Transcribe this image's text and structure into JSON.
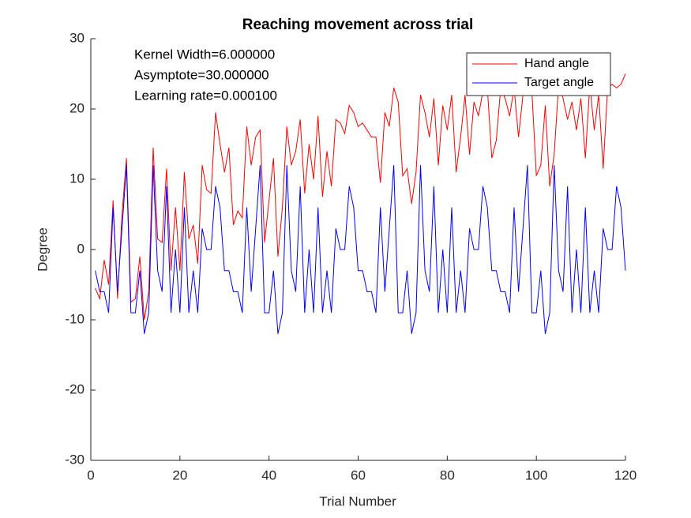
{
  "chart_data": {
    "type": "line",
    "title": "Reaching movement across trial",
    "xlabel": "Trial Number",
    "ylabel": "Degree",
    "annotations": [
      "Kernel Width=6.000000",
      "Asymptote=30.000000",
      "Learning rate=0.000100"
    ],
    "xlim": [
      0,
      120
    ],
    "ylim": [
      -30,
      30
    ],
    "xticks": [
      0,
      20,
      40,
      60,
      80,
      100,
      120
    ],
    "yticks": [
      -30,
      -20,
      -10,
      0,
      10,
      20,
      30
    ],
    "legend": "northeast",
    "x": [
      1,
      2,
      3,
      4,
      5,
      6,
      7,
      8,
      9,
      10,
      11,
      12,
      13,
      14,
      15,
      16,
      17,
      18,
      19,
      20,
      21,
      22,
      23,
      24,
      25,
      26,
      27,
      28,
      29,
      30,
      31,
      32,
      33,
      34,
      35,
      36,
      37,
      38,
      39,
      40,
      41,
      42,
      43,
      44,
      45,
      46,
      47,
      48,
      49,
      50,
      51,
      52,
      53,
      54,
      55,
      56,
      57,
      58,
      59,
      60,
      61,
      62,
      63,
      64,
      65,
      66,
      67,
      68,
      69,
      70,
      71,
      72,
      73,
      74,
      75,
      76,
      77,
      78,
      79,
      80,
      81,
      82,
      83,
      84,
      85,
      86,
      87,
      88,
      89,
      90,
      91,
      92,
      93,
      94,
      95,
      96,
      97,
      98,
      99,
      100,
      101,
      102,
      103,
      104,
      105,
      106,
      107,
      108,
      109,
      110,
      111,
      112,
      113,
      114,
      115,
      116,
      117,
      118,
      119,
      120
    ],
    "series": [
      {
        "name": "Hand angle",
        "color": "#ff0000",
        "values": [
          -5.5,
          -7,
          -1.5,
          -5,
          7,
          -7,
          5,
          13,
          -7.5,
          -7,
          -1,
          -10,
          -6,
          14.5,
          1.5,
          1,
          11.5,
          -3,
          6,
          -3,
          11,
          1.5,
          3.5,
          -2,
          12,
          8.5,
          8,
          19.5,
          15,
          11,
          14.5,
          3.5,
          5.5,
          4.5,
          17.5,
          12,
          16,
          17,
          1,
          7,
          13,
          -1,
          6,
          17.5,
          12,
          14,
          18.5,
          8,
          15,
          10,
          19,
          7.5,
          14,
          9,
          18.5,
          18,
          16.5,
          20.5,
          19.5,
          17.5,
          18,
          17,
          16,
          16,
          9.5,
          19.5,
          17.5,
          23,
          21,
          10.5,
          11.5,
          6.5,
          11,
          22,
          19.5,
          16,
          21.5,
          12,
          20.5,
          17,
          22,
          11,
          16,
          22,
          13.5,
          21,
          19,
          22.5,
          23,
          13,
          15.5,
          23,
          21.5,
          19,
          23,
          16,
          22,
          23,
          22.5,
          10.5,
          12,
          20.5,
          9,
          13.5,
          23.5,
          21.5,
          18.5,
          21,
          17,
          21.5,
          13,
          23.5,
          17,
          22,
          11.5,
          23,
          23.5,
          23,
          23.5,
          25
        ]
      },
      {
        "name": "Target angle",
        "color": "#0000ff",
        "values": [
          -3,
          -6,
          -6,
          -9,
          6,
          -6,
          3,
          12,
          -9,
          -9,
          -3,
          -12,
          -9,
          12,
          -3,
          -6,
          9,
          -9,
          0,
          -9,
          6,
          -9,
          -3,
          -9,
          3,
          0,
          0,
          9,
          6,
          -3,
          -3,
          -6,
          -6,
          -9,
          6,
          -6,
          3,
          12,
          -9,
          -9,
          -3,
          -12,
          -9,
          12,
          -3,
          -6,
          9,
          -9,
          0,
          -9,
          6,
          -9,
          -3,
          -9,
          3,
          0,
          0,
          9,
          6,
          -3,
          -3,
          -6,
          -6,
          -9,
          6,
          -6,
          3,
          12,
          -9,
          -9,
          -3,
          -12,
          -9,
          12,
          -3,
          -6,
          9,
          -9,
          0,
          -9,
          6,
          -9,
          -3,
          -9,
          3,
          0,
          0,
          9,
          6,
          -3,
          -3,
          -6,
          -6,
          -9,
          6,
          -6,
          3,
          12,
          -9,
          -9,
          -3,
          -12,
          -9,
          12,
          -3,
          -6,
          9,
          -9,
          0,
          -9,
          6,
          -9,
          -3,
          -9,
          3,
          0,
          0,
          9,
          6,
          -3
        ]
      }
    ]
  }
}
